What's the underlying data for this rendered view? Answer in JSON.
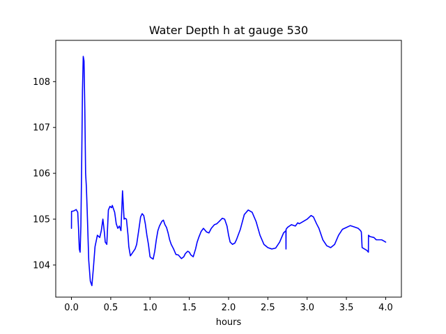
{
  "chart_data": {
    "type": "line",
    "title": "Water Depth h at gauge 530",
    "xlabel": "hours",
    "ylabel": "",
    "xlim": [
      -0.2,
      4.2
    ],
    "ylim": [
      103.3,
      108.9
    ],
    "xticks": [
      0.0,
      0.5,
      1.0,
      1.5,
      2.0,
      2.5,
      3.0,
      3.5,
      4.0
    ],
    "xtick_labels": [
      "0.0",
      "0.5",
      "1.0",
      "1.5",
      "2.0",
      "2.5",
      "3.0",
      "3.5",
      "4.0"
    ],
    "yticks": [
      104,
      105,
      106,
      107,
      108
    ],
    "ytick_labels": [
      "104",
      "105",
      "106",
      "107",
      "108"
    ],
    "grid": false,
    "series": [
      {
        "color": "#0000ff",
        "x": [
          0.0,
          0.001,
          0.03,
          0.06,
          0.08,
          0.09,
          0.1,
          0.11,
          0.12,
          0.13,
          0.14,
          0.15,
          0.16,
          0.17,
          0.18,
          0.19,
          0.2,
          0.22,
          0.24,
          0.26,
          0.28,
          0.3,
          0.33,
          0.36,
          0.38,
          0.4,
          0.42,
          0.43,
          0.45,
          0.47,
          0.49,
          0.51,
          0.52,
          0.55,
          0.57,
          0.59,
          0.61,
          0.63,
          0.65,
          0.66,
          0.67,
          0.68,
          0.7,
          0.72,
          0.73,
          0.75,
          0.77,
          0.79,
          0.81,
          0.83,
          0.86,
          0.88,
          0.9,
          0.92,
          0.94,
          0.96,
          0.98,
          1.0,
          1.02,
          1.04,
          1.06,
          1.08,
          1.1,
          1.12,
          1.15,
          1.17,
          1.19,
          1.21,
          1.23,
          1.25,
          1.27,
          1.3,
          1.33,
          1.36,
          1.4,
          1.43,
          1.45,
          1.48,
          1.5,
          1.52,
          1.55,
          1.58,
          1.6,
          1.62,
          1.65,
          1.68,
          1.72,
          1.75,
          1.78,
          1.82,
          1.85,
          1.88,
          1.92,
          1.95,
          1.98,
          2.0,
          2.02,
          2.05,
          2.08,
          2.1,
          2.15,
          2.2,
          2.25,
          2.3,
          2.35,
          2.4,
          2.45,
          2.5,
          2.55,
          2.6,
          2.65,
          2.7,
          2.73,
          2.731,
          2.732,
          2.75,
          2.8,
          2.85,
          2.88,
          2.9,
          2.95,
          3.0,
          3.05,
          3.08,
          3.12,
          3.15,
          3.2,
          3.25,
          3.3,
          3.35,
          3.4,
          3.45,
          3.5,
          3.55,
          3.6,
          3.65,
          3.68,
          3.69,
          3.7,
          3.73,
          3.76,
          3.78,
          3.781,
          3.8,
          3.85,
          3.88,
          3.92,
          3.95,
          3.98,
          4.0
        ],
        "y": [
          104.8,
          105.17,
          105.18,
          105.21,
          105.15,
          104.8,
          104.35,
          104.28,
          104.85,
          106.2,
          107.8,
          108.55,
          108.45,
          107.4,
          106.0,
          105.7,
          105.2,
          104.1,
          103.65,
          103.55,
          103.95,
          104.4,
          104.65,
          104.6,
          104.75,
          105.0,
          104.7,
          104.5,
          104.45,
          105.2,
          105.28,
          105.25,
          105.3,
          105.15,
          104.9,
          104.8,
          104.85,
          104.75,
          105.62,
          105.3,
          105.0,
          105.02,
          105.0,
          104.65,
          104.4,
          104.2,
          104.25,
          104.3,
          104.35,
          104.45,
          104.8,
          105.05,
          105.12,
          105.08,
          104.9,
          104.65,
          104.45,
          104.18,
          104.15,
          104.13,
          104.3,
          104.55,
          104.75,
          104.85,
          104.95,
          104.98,
          104.88,
          104.82,
          104.7,
          104.55,
          104.45,
          104.35,
          104.23,
          104.22,
          104.14,
          104.18,
          104.25,
          104.3,
          104.28,
          104.22,
          104.18,
          104.35,
          104.5,
          104.6,
          104.73,
          104.8,
          104.72,
          104.7,
          104.8,
          104.88,
          104.9,
          104.95,
          105.02,
          105.0,
          104.85,
          104.65,
          104.5,
          104.45,
          104.48,
          104.55,
          104.78,
          105.1,
          105.2,
          105.15,
          104.95,
          104.65,
          104.45,
          104.38,
          104.35,
          104.37,
          104.5,
          104.7,
          104.75,
          104.35,
          104.78,
          104.82,
          104.88,
          104.85,
          104.92,
          104.9,
          104.95,
          105.0,
          105.08,
          105.05,
          104.9,
          104.8,
          104.55,
          104.42,
          104.38,
          104.45,
          104.65,
          104.78,
          104.82,
          104.86,
          104.83,
          104.8,
          104.75,
          104.72,
          104.38,
          104.35,
          104.32,
          104.28,
          104.65,
          104.62,
          104.6,
          104.55,
          104.55,
          104.55,
          104.52,
          104.5
        ]
      }
    ]
  }
}
